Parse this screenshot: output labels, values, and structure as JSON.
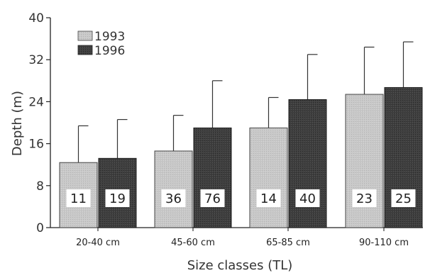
{
  "chart_data": {
    "type": "bar",
    "title": "",
    "xlabel": "Size classes (TL)",
    "ylabel": "Depth (m)",
    "ylim": [
      0,
      40
    ],
    "yticks": [
      0,
      8,
      16,
      24,
      32,
      40
    ],
    "yticks_text": [
      "0",
      "8",
      "16",
      "24",
      "32",
      "40"
    ],
    "categories": [
      "20-40 cm",
      "45-60 cm",
      "65-85 cm",
      "90-110 cm"
    ],
    "legend_position": "top-left",
    "series": [
      {
        "name": "1993",
        "color": "#c4c4c4",
        "values": [
          12.4,
          14.6,
          19.0,
          25.4
        ],
        "error_upper": [
          19.4,
          21.4,
          24.8,
          34.4
        ],
        "n": [
          "11",
          "36",
          "14",
          "23"
        ]
      },
      {
        "name": "1996",
        "color": "#3f3f3f",
        "values": [
          13.2,
          19.0,
          24.4,
          26.7
        ],
        "error_upper": [
          20.6,
          28.0,
          33.0,
          35.4
        ],
        "n": [
          "19",
          "76",
          "40",
          "25"
        ]
      }
    ]
  }
}
